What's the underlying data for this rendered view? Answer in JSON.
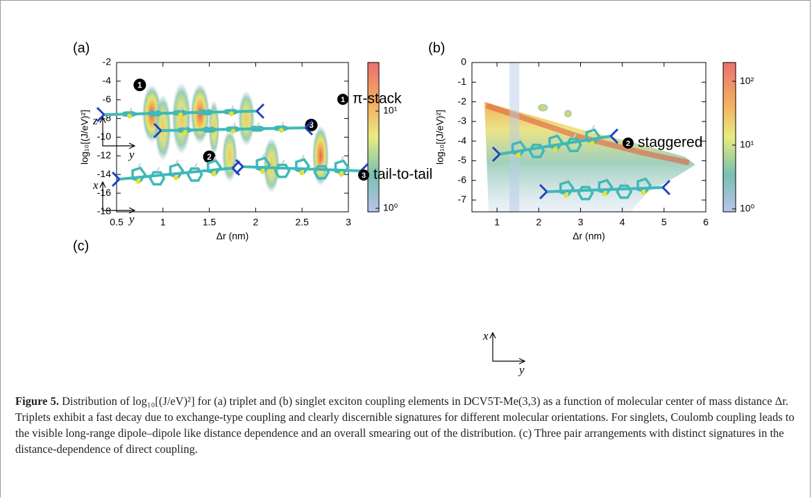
{
  "chart_data": [
    {
      "type": "density",
      "panel_label": "(a)",
      "xlabel": "Δr (nm)",
      "ylabel": "log₁₀[(J/eV)²]",
      "xlim": [
        0.5,
        3
      ],
      "xticks": [
        0.5,
        1,
        1.5,
        2,
        2.5,
        3
      ],
      "ylim": [
        -18,
        -2
      ],
      "yticks": [
        -18,
        -16,
        -14,
        -12,
        -10,
        -8,
        -6,
        -4,
        -2
      ],
      "clim": [
        0.92,
        31.6
      ],
      "colorbar_log": true,
      "cticks": [
        {
          "value": 1,
          "label": "10⁰"
        },
        {
          "value": 10,
          "label": "10¹"
        }
      ],
      "annotations": [
        {
          "text": "1",
          "x": 0.75,
          "y": -4.4
        },
        {
          "text": "2",
          "x": 1.5,
          "y": -12.1
        },
        {
          "text": "3",
          "x": 2.6,
          "y": -8.7
        }
      ]
    },
    {
      "type": "density",
      "panel_label": "(b)",
      "xlabel": "Δr (nm)",
      "ylabel": "log₁₀[(J/eV)²]",
      "xlim": [
        0.4,
        6
      ],
      "xticks": [
        1,
        2,
        3,
        4,
        5,
        6
      ],
      "ylim": [
        -7.6,
        0
      ],
      "yticks": [
        -7,
        -6,
        -5,
        -4,
        -3,
        -2,
        -1,
        0
      ],
      "clim": [
        0.9,
        197
      ],
      "colorbar_log": true,
      "cticks": [
        {
          "value": 1,
          "label": "10⁰"
        },
        {
          "value": 10,
          "label": "10¹"
        },
        {
          "value": 100,
          "label": "10²"
        }
      ]
    }
  ],
  "panel_c": {
    "label": "(c)",
    "arrangements": [
      {
        "number": "1",
        "name": "π-stack",
        "axis_vertical": "z",
        "axis_horizontal": "y"
      },
      {
        "number": "2",
        "name": "staggered",
        "axis_vertical": "x",
        "axis_horizontal": "y"
      },
      {
        "number": "3",
        "name": "tail-to-tail",
        "axis_vertical": "x",
        "axis_horizontal": "y"
      }
    ]
  },
  "caption": {
    "label": "Figure 5.",
    "text": "Distribution of log₁₀[(J/eV)²] for (a) triplet and (b) singlet exciton coupling elements in DCV5T-Me(3,3) as a function of molecular center of mass distance Δr. Triplets exhibit a fast decay due to exchange-type coupling and clearly discernible signatures for different molecular orientations. For singlets, Coulomb coupling leads to the visible long-range dipole–dipole like distance dependence and an overall smearing out of the distribution. (c) Three pair arrangements with distinct signatures in the distance-dependence of direct coupling."
  }
}
